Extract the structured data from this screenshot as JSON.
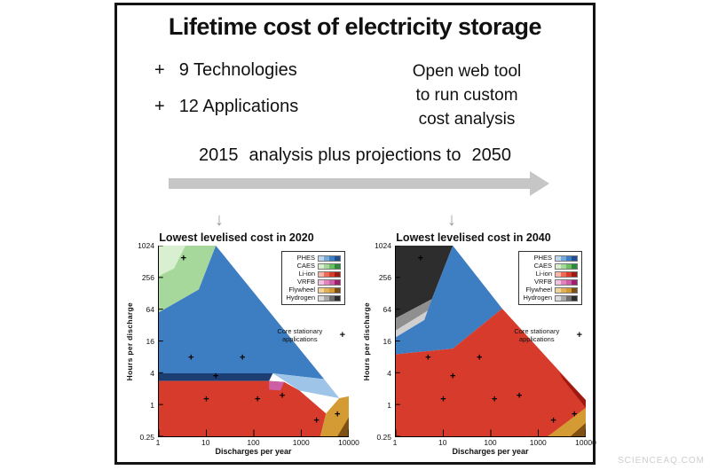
{
  "title": "Lifetime cost of electricity storage",
  "features": [
    {
      "bullet": "+",
      "label": "9 Technologies"
    },
    {
      "bullet": "+",
      "label": "12 Applications"
    }
  ],
  "webtool_note": {
    "line1": "Open web tool",
    "line2": "to run custom",
    "line3": "cost analysis"
  },
  "timeline": {
    "start_year": "2015",
    "middle_text": "analysis plus projections to",
    "end_year": "2050"
  },
  "watermark": "SCIENCEAQ.COM",
  "legend": {
    "note": "Core stationary applications",
    "entries": [
      {
        "label": "PHES",
        "colors": [
          "#bdd7ee",
          "#74a9d8",
          "#3d7ec2",
          "#1d4f91"
        ]
      },
      {
        "label": "CAES",
        "colors": [
          "#d8efd0",
          "#a6d79b",
          "#6abf5e",
          "#2e8b3c"
        ]
      },
      {
        "label": "Li-ion",
        "colors": [
          "#f8b5a8",
          "#ee6a55",
          "#d63b2b",
          "#9e1a10"
        ]
      },
      {
        "label": "VRFB",
        "colors": [
          "#f3c0dd",
          "#e183bc",
          "#cd5fa5",
          "#a01d72"
        ]
      },
      {
        "label": "Flywheel",
        "colors": [
          "#f0d49a",
          "#e0b05c",
          "#d49a33",
          "#7e5013"
        ]
      },
      {
        "label": "Hydrogen",
        "colors": [
          "#dcdcdc",
          "#a8a8a8",
          "#6e6e6e",
          "#2d2d2d"
        ]
      }
    ]
  },
  "chart_data": [
    {
      "type": "heatmap",
      "title": "Lowest levelised cost in 2020",
      "xlabel": "Discharges per year",
      "ylabel": "Hours per discharge",
      "x_scale": "log",
      "y_scale": "log",
      "xlim": [
        1,
        10000
      ],
      "ylim": [
        0.25,
        1024
      ],
      "x_tick_labels": [
        "1",
        "10",
        "100",
        "1000",
        "10000"
      ],
      "y_tick_labels": [
        "1024",
        "256",
        "64",
        "16",
        "4",
        "1",
        "0.25"
      ],
      "regions": [
        {
          "technology": "CAES",
          "color": "#a6d79b",
          "points": [
            [
              0,
              1
            ],
            [
              0.3,
              1
            ],
            [
              0.21,
              0.77
            ],
            [
              0,
              0.65
            ]
          ]
        },
        {
          "technology": "CAES-light",
          "color": "#d8efd0",
          "points": [
            [
              0,
              1
            ],
            [
              0.14,
              1
            ],
            [
              0.08,
              0.88
            ],
            [
              0,
              0.84
            ]
          ]
        },
        {
          "technology": "PHES",
          "color": "#3d7ec2",
          "points": [
            [
              0,
              0.65
            ],
            [
              0.21,
              0.77
            ],
            [
              0.3,
              1
            ],
            [
              0.87,
              0.3
            ],
            [
              0.6,
              0.33
            ],
            [
              0,
              0.33
            ]
          ]
        },
        {
          "technology": "PHES-light",
          "color": "#9ec4e8",
          "points": [
            [
              0.6,
              0.33
            ],
            [
              0.87,
              0.3
            ],
            [
              0.95,
              0.2
            ],
            [
              0.74,
              0.24
            ]
          ]
        },
        {
          "technology": "PHES-dark",
          "color": "#1d3e73",
          "points": [
            [
              0,
              0.33
            ],
            [
              0.6,
              0.33
            ],
            [
              0.58,
              0.29
            ],
            [
              0,
              0.29
            ]
          ]
        },
        {
          "technology": "Li-ion",
          "color": "#d63b2b",
          "points": [
            [
              0,
              0.29
            ],
            [
              0.58,
              0.29
            ],
            [
              0.66,
              0.285
            ],
            [
              0.74,
              0.24
            ],
            [
              0.88,
              0.12
            ],
            [
              0.85,
              0
            ],
            [
              0,
              0
            ]
          ]
        },
        {
          "technology": "VRFB",
          "color": "#cd5fa5",
          "points": [
            [
              0.58,
              0.29
            ],
            [
              0.66,
              0.285
            ],
            [
              0.64,
              0.24
            ],
            [
              0.58,
              0.245
            ]
          ]
        },
        {
          "technology": "Flywheel",
          "color": "#d49a33",
          "points": [
            [
              0.85,
              0
            ],
            [
              0.88,
              0.12
            ],
            [
              0.95,
              0.2
            ],
            [
              1,
              0.21
            ],
            [
              1,
              0
            ]
          ]
        },
        {
          "technology": "Flywheel-dark",
          "color": "#7e5013",
          "points": [
            [
              0.94,
              0
            ],
            [
              1,
              0.1
            ],
            [
              1,
              0
            ]
          ]
        }
      ],
      "markers": [
        [
          0.13,
          0.93
        ],
        [
          0.17,
          0.41
        ],
        [
          0.44,
          0.41
        ],
        [
          0.3,
          0.31
        ],
        [
          0.25,
          0.19
        ],
        [
          0.52,
          0.19
        ],
        [
          0.65,
          0.21
        ],
        [
          0.83,
          0.08
        ],
        [
          0.94,
          0.11
        ]
      ]
    },
    {
      "type": "heatmap",
      "title": "Lowest levelised cost in 2040",
      "xlabel": "Discharges per year",
      "ylabel": "Hours per discharge",
      "x_scale": "log",
      "y_scale": "log",
      "xlim": [
        1,
        10000
      ],
      "ylim": [
        0.25,
        1024
      ],
      "x_tick_labels": [
        "1",
        "10",
        "100",
        "1000",
        "10000"
      ],
      "y_tick_labels": [
        "1024",
        "256",
        "64",
        "16",
        "4",
        "1",
        "0.25"
      ],
      "regions": [
        {
          "technology": "Hydrogen",
          "color": "#2d2d2d",
          "points": [
            [
              0,
              1
            ],
            [
              0.3,
              1
            ],
            [
              0.19,
              0.72
            ],
            [
              0,
              0.62
            ]
          ]
        },
        {
          "technology": "Hydrogen-mid",
          "color": "#8f8f8f",
          "points": [
            [
              0,
              0.62
            ],
            [
              0.19,
              0.72
            ],
            [
              0.17,
              0.66
            ],
            [
              0,
              0.555
            ]
          ]
        },
        {
          "technology": "Hydrogen-light",
          "color": "#cfcfcf",
          "points": [
            [
              0,
              0.555
            ],
            [
              0.17,
              0.66
            ],
            [
              0.15,
              0.61
            ],
            [
              0,
              0.52
            ]
          ]
        },
        {
          "technology": "PHES",
          "color": "#3d7ec2",
          "points": [
            [
              0,
              0.52
            ],
            [
              0.15,
              0.61
            ],
            [
              0.19,
              0.72
            ],
            [
              0.3,
              1
            ],
            [
              0.56,
              0.67
            ],
            [
              0.3,
              0.46
            ],
            [
              0,
              0.43
            ]
          ]
        },
        {
          "technology": "Li-ion",
          "color": "#d63b2b",
          "points": [
            [
              0,
              0.43
            ],
            [
              0.3,
              0.46
            ],
            [
              0.56,
              0.67
            ],
            [
              1,
              0.19
            ],
            [
              1,
              0.13
            ],
            [
              0.8,
              0
            ],
            [
              0,
              0
            ]
          ]
        },
        {
          "technology": "Li-ion-dark",
          "color": "#9e1a10",
          "points": [
            [
              0.86,
              0.335
            ],
            [
              1,
              0.19
            ],
            [
              1,
              0.15
            ],
            [
              0.88,
              0.3
            ]
          ]
        },
        {
          "technology": "Flywheel",
          "color": "#d49a33",
          "points": [
            [
              0.8,
              0
            ],
            [
              1,
              0.15
            ],
            [
              1,
              0
            ]
          ]
        },
        {
          "technology": "Flywheel-dark",
          "color": "#7e5013",
          "points": [
            [
              0.92,
              0
            ],
            [
              1,
              0.07
            ],
            [
              1,
              0
            ]
          ]
        }
      ],
      "markers": [
        [
          0.13,
          0.93
        ],
        [
          0.17,
          0.41
        ],
        [
          0.44,
          0.41
        ],
        [
          0.3,
          0.31
        ],
        [
          0.25,
          0.19
        ],
        [
          0.52,
          0.19
        ],
        [
          0.65,
          0.21
        ],
        [
          0.83,
          0.08
        ],
        [
          0.94,
          0.11
        ]
      ]
    }
  ]
}
